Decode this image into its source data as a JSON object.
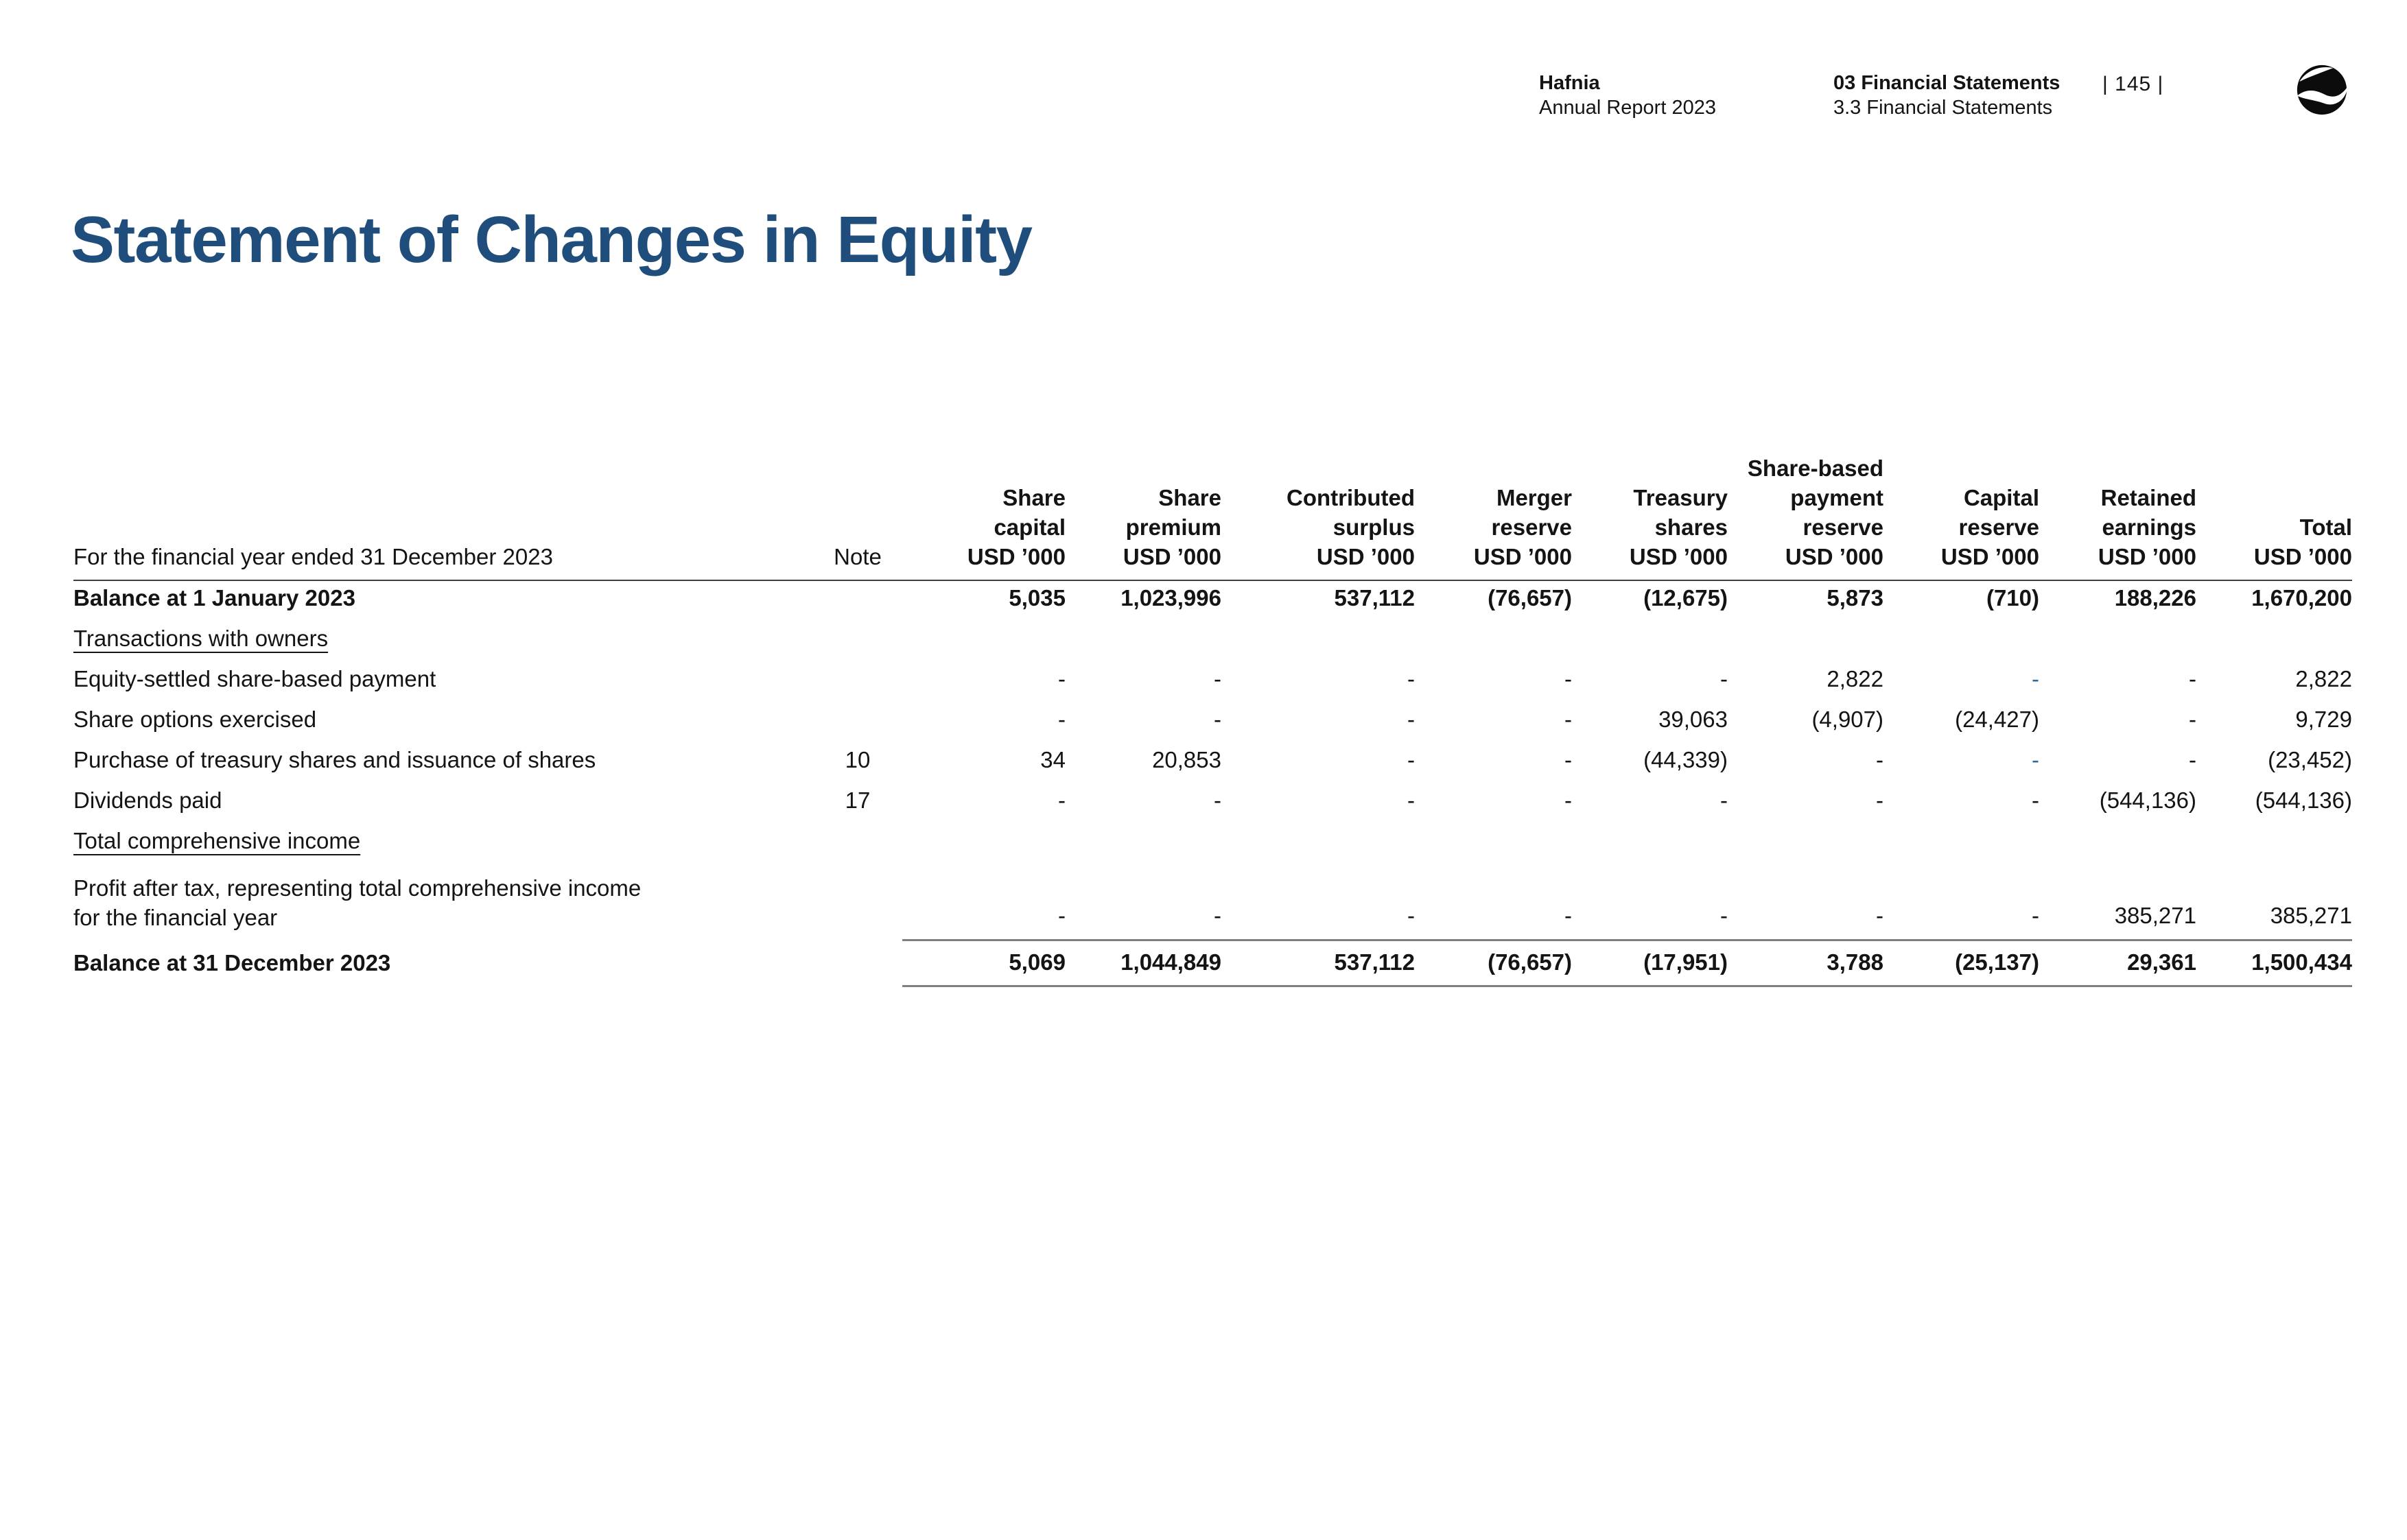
{
  "page_header": {
    "brand": {
      "line1": "Hafnia",
      "line2": "Annual Report 2023"
    },
    "section": {
      "line1": "03 Financial Statements",
      "line2": "3.3 Financial Statements"
    },
    "page_number": "| 145 |",
    "logo_name": "hafnia-logo"
  },
  "title": "Statement of Changes in Equity",
  "table": {
    "row_header_label": "For the financial year ended 31 December 2023",
    "note_label": "Note",
    "unit_label": "USD ’000",
    "columns": [
      {
        "a": "",
        "b": "Share",
        "c": "capital"
      },
      {
        "a": "",
        "b": "Share",
        "c": "premium"
      },
      {
        "a": "",
        "b": "Contributed",
        "c": "surplus"
      },
      {
        "a": "",
        "b": "Merger",
        "c": "reserve"
      },
      {
        "a": "",
        "b": "Treasury",
        "c": "shares"
      },
      {
        "a": "Share-based",
        "b": "payment",
        "c": "reserve"
      },
      {
        "a": "",
        "b": "Capital",
        "c": "reserve"
      },
      {
        "a": "",
        "b": "Retained",
        "c": "earnings"
      },
      {
        "a": "",
        "b": "",
        "c": "Total"
      }
    ],
    "rows": [
      {
        "label": "Balance at 1 January 2023",
        "bold": true,
        "note": "",
        "values": [
          "5,035",
          "1,023,996",
          "537,112",
          "(76,657)",
          "(12,675)",
          "5,873",
          "(710)",
          "188,226",
          "1,670,200"
        ]
      },
      {
        "label": "Transactions with owners",
        "underline": true,
        "note": "",
        "values": [
          "",
          "",
          "",
          "",
          "",
          "",
          "",
          "",
          ""
        ]
      },
      {
        "label": "Equity-settled share-based payment",
        "note": "",
        "values": [
          "-",
          "-",
          "-",
          "-",
          "-",
          "2,822",
          "-",
          "-",
          "2,822"
        ],
        "accents": [
          6
        ]
      },
      {
        "label": "Share options exercised",
        "note": "",
        "values": [
          "-",
          "-",
          "-",
          "-",
          "39,063",
          "(4,907)",
          "(24,427)",
          "-",
          "9,729"
        ]
      },
      {
        "label": "Purchase of treasury shares and issuance of shares",
        "note": "10",
        "values": [
          "34",
          "20,853",
          "-",
          "-",
          "(44,339)",
          "-",
          "-",
          "-",
          "(23,452)"
        ],
        "accents": [
          6
        ]
      },
      {
        "label": "Dividends paid",
        "note": "17",
        "values": [
          "-",
          "-",
          "-",
          "-",
          "-",
          "-",
          "-",
          "(544,136)",
          "(544,136)"
        ]
      },
      {
        "label": "Total comprehensive income",
        "underline": true,
        "note": "",
        "values": [
          "",
          "",
          "",
          "",
          "",
          "",
          "",
          "",
          ""
        ]
      },
      {
        "label": "Profit after tax, representing total comprehensive income",
        "label2": "for the financial year",
        "note": "",
        "values": [
          "-",
          "-",
          "-",
          "-",
          "-",
          "-",
          "-",
          "385,271",
          "385,271"
        ],
        "height": 112,
        "rule_below": true
      },
      {
        "label": "Balance at 31 December 2023",
        "bold": true,
        "note": "",
        "values": [
          "5,069",
          "1,044,849",
          "537,112",
          "(76,657)",
          "(17,951)",
          "3,788",
          "(25,137)",
          "29,361",
          "1,500,434"
        ],
        "height": 67,
        "rule_below": true,
        "center": true
      }
    ]
  },
  "colors": {
    "title": "#1f4e7d",
    "accent_dash": "#2e6c9e",
    "text": "#141414",
    "header_rule": "#3f3f3f",
    "total_rule": "#7f7f7f"
  }
}
